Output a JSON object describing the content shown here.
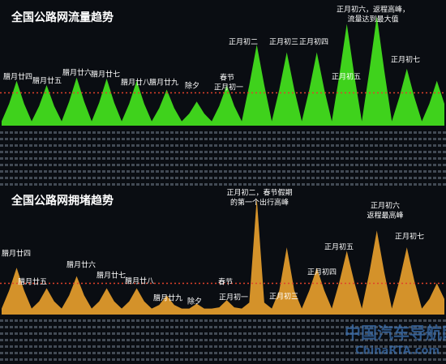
{
  "chart_data": [
    {
      "type": "area",
      "title": "全国公路网流量趋势",
      "color": "#3fd21c",
      "ylim": [
        0,
        100
      ],
      "reference_line": 30,
      "reference_color": "#e0402a",
      "values": [
        4,
        20,
        41,
        20,
        4,
        18,
        37,
        18,
        4,
        22,
        44,
        22,
        4,
        21,
        43,
        21,
        4,
        20,
        41,
        20,
        4,
        16,
        33,
        16,
        4,
        11,
        22,
        11,
        4,
        18,
        37,
        18,
        4,
        37,
        74,
        37,
        4,
        33,
        67,
        33,
        4,
        33,
        67,
        33,
        4,
        46,
        93,
        46,
        4,
        50,
        100,
        50,
        4,
        26,
        52,
        26,
        4,
        20,
        41,
        20
      ],
      "annotations": [
        [
          "腊月廿四"
        ],
        [
          "腊月廿五"
        ],
        [
          "腊月廿六"
        ],
        [
          "腊月廿七"
        ],
        [
          "腊月廿八"
        ],
        [
          "腊月廿九"
        ],
        [
          "除夕"
        ],
        [
          "春节"
        ],
        [
          "正月初一"
        ],
        [
          "正月初二"
        ],
        [
          "正月初三"
        ],
        [
          "正月初四"
        ],
        [
          "正月初五"
        ],
        [
          "正月初六，返程高峰，",
          "流量达到最大值"
        ],
        [
          "正月初七"
        ]
      ]
    },
    {
      "type": "area",
      "title": "全国公路网拥堵趋势",
      "color": "#d4922a",
      "ylim": [
        0,
        100
      ],
      "reference_line": 26,
      "reference_color": "#e0402a",
      "values": [
        5,
        20,
        39,
        20,
        5,
        11,
        22,
        11,
        5,
        16,
        32,
        16,
        5,
        11,
        22,
        11,
        5,
        11,
        22,
        11,
        5,
        8,
        16,
        8,
        5,
        5,
        9,
        5,
        5,
        6,
        12,
        6,
        5,
        10,
        97,
        10,
        5,
        20,
        56,
        20,
        5,
        20,
        39,
        20,
        5,
        27,
        53,
        27,
        5,
        35,
        70,
        35,
        5,
        28,
        56,
        28,
        5,
        13,
        26,
        13
      ],
      "annotations": [
        [
          "腊月廿四"
        ],
        [
          "腊月廿五"
        ],
        [
          "腊月廿六"
        ],
        [
          "腊月廿七"
        ],
        [
          "腊月廿八"
        ],
        [
          "腊月廿九"
        ],
        [
          "除夕"
        ],
        [
          "春节"
        ],
        [
          "正月初一"
        ],
        [
          "正月初二，春节假期",
          "的第一个出行高峰"
        ],
        [
          "正月初三"
        ],
        [
          "正月初四"
        ],
        [
          "正月初五"
        ],
        [
          "正月初六",
          "返程最高峰"
        ],
        [
          "正月初七"
        ]
      ]
    }
  ],
  "watermark": {
    "cn": "中国汽车导航网",
    "en": "ChinaRTA.com"
  }
}
